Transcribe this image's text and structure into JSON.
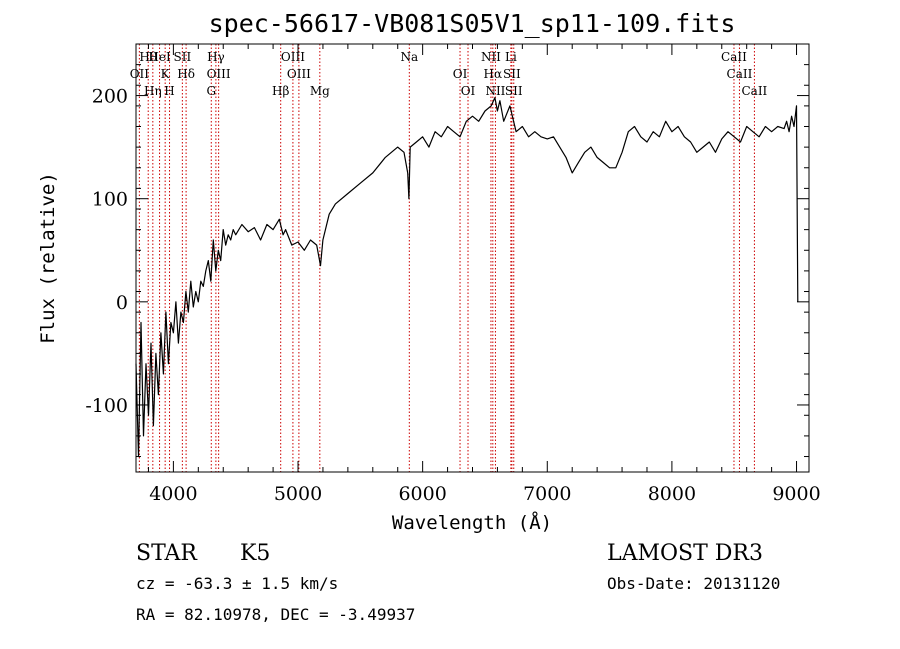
{
  "chart_data": {
    "type": "line",
    "title": "spec-56617-VB081S05V1_sp11-109.fits",
    "xlabel": "Wavelength (Å)",
    "ylabel": "Flux (relative)",
    "xlim": [
      3700,
      9100
    ],
    "ylim": [
      -165,
      250
    ],
    "x_ticks": [
      4000,
      5000,
      6000,
      7000,
      8000,
      9000
    ],
    "y_ticks": [
      -100,
      0,
      100,
      200
    ],
    "grid": false,
    "legend": "none",
    "series": [
      {
        "name": "spectrum",
        "x": [
          3700,
          3720,
          3740,
          3760,
          3780,
          3800,
          3820,
          3840,
          3860,
          3880,
          3900,
          3920,
          3940,
          3960,
          3980,
          4000,
          4020,
          4040,
          4060,
          4080,
          4100,
          4120,
          4140,
          4160,
          4180,
          4200,
          4220,
          4240,
          4260,
          4280,
          4300,
          4320,
          4340,
          4360,
          4380,
          4400,
          4420,
          4440,
          4460,
          4480,
          4500,
          4550,
          4600,
          4650,
          4700,
          4750,
          4800,
          4850,
          4880,
          4900,
          4950,
          5000,
          5050,
          5100,
          5150,
          5180,
          5200,
          5250,
          5300,
          5400,
          5500,
          5600,
          5700,
          5800,
          5850,
          5880,
          5890,
          5900,
          5950,
          6000,
          6050,
          6100,
          6150,
          6200,
          6250,
          6300,
          6350,
          6400,
          6450,
          6500,
          6550,
          6580,
          6600,
          6620,
          6650,
          6700,
          6750,
          6800,
          6850,
          6900,
          6950,
          7000,
          7050,
          7100,
          7150,
          7200,
          7250,
          7300,
          7350,
          7400,
          7450,
          7500,
          7550,
          7600,
          7650,
          7700,
          7750,
          7800,
          7850,
          7900,
          7950,
          8000,
          8050,
          8100,
          8150,
          8200,
          8250,
          8300,
          8350,
          8400,
          8450,
          8500,
          8550,
          8600,
          8650,
          8700,
          8750,
          8800,
          8850,
          8900,
          8920,
          8940,
          8960,
          8980,
          9000,
          9010
        ],
        "values": [
          -60,
          -150,
          -20,
          -130,
          -60,
          -110,
          -40,
          -120,
          -50,
          -90,
          -30,
          -70,
          -10,
          -60,
          -20,
          -30,
          0,
          -40,
          -10,
          -20,
          10,
          -10,
          20,
          -5,
          10,
          0,
          20,
          15,
          30,
          40,
          20,
          60,
          30,
          50,
          40,
          70,
          55,
          65,
          60,
          70,
          65,
          75,
          68,
          72,
          60,
          75,
          70,
          80,
          65,
          70,
          55,
          58,
          50,
          60,
          55,
          35,
          60,
          85,
          95,
          105,
          115,
          125,
          140,
          150,
          145,
          125,
          100,
          150,
          155,
          160,
          150,
          165,
          160,
          170,
          165,
          160,
          175,
          180,
          175,
          185,
          190,
          198,
          185,
          195,
          175,
          190,
          165,
          170,
          160,
          165,
          160,
          158,
          160,
          150,
          140,
          125,
          135,
          145,
          150,
          140,
          135,
          130,
          130,
          145,
          165,
          170,
          160,
          155,
          165,
          160,
          175,
          165,
          170,
          160,
          155,
          145,
          150,
          155,
          145,
          158,
          165,
          160,
          155,
          170,
          165,
          160,
          170,
          165,
          170,
          168,
          175,
          165,
          180,
          170,
          190,
          0
        ]
      }
    ],
    "spectral_lines": [
      {
        "name": "Hθ",
        "wavelength": 3798
      },
      {
        "name": "OII",
        "wavelength": 3727
      },
      {
        "name": "Hη",
        "wavelength": 3835
      },
      {
        "name": "HeI",
        "wavelength": 3889
      },
      {
        "name": "K",
        "wavelength": 3934
      },
      {
        "name": "H",
        "wavelength": 3969
      },
      {
        "name": "SII",
        "wavelength": 4072
      },
      {
        "name": "Hδ",
        "wavelength": 4102
      },
      {
        "name": "G",
        "wavelength": 4304
      },
      {
        "name": "Hγ",
        "wavelength": 4341
      },
      {
        "name": "OIII",
        "wavelength": 4363
      },
      {
        "name": "Hβ",
        "wavelength": 4861
      },
      {
        "name": "OIII",
        "wavelength": 4959
      },
      {
        "name": "OIII",
        "wavelength": 5007
      },
      {
        "name": "Mg",
        "wavelength": 5175
      },
      {
        "name": "Na",
        "wavelength": 5893
      },
      {
        "name": "OI",
        "wavelength": 6300
      },
      {
        "name": "OI",
        "wavelength": 6364
      },
      {
        "name": "NII",
        "wavelength": 6548
      },
      {
        "name": "Hα",
        "wavelength": 6563
      },
      {
        "name": "NII",
        "wavelength": 6584
      },
      {
        "name": "Li",
        "wavelength": 6708
      },
      {
        "name": "SII",
        "wavelength": 6716
      },
      {
        "name": "SII",
        "wavelength": 6731
      },
      {
        "name": "CaII",
        "wavelength": 8498
      },
      {
        "name": "CaII",
        "wavelength": 8542
      },
      {
        "name": "CaII",
        "wavelength": 8662
      }
    ]
  },
  "info": {
    "object_class": "STAR",
    "subclass": "K5",
    "survey": "LAMOST DR3",
    "redshift": "cz = -63.3 ± 1.5 km/s",
    "obs_date": "Obs-Date: 20131120",
    "coords": "RA =  82.10978, DEC =  -3.49937"
  },
  "colors": {
    "line": "#000000",
    "marker": "#cc0000",
    "background": "#ffffff"
  }
}
